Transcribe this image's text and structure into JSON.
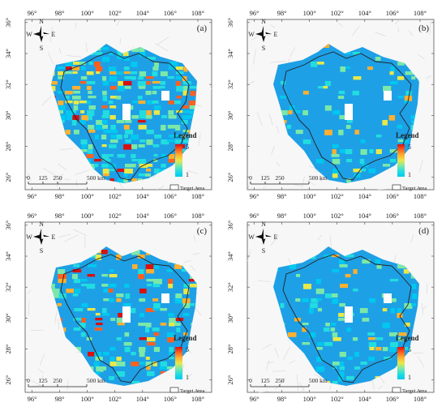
{
  "panels": [
    {
      "label": "(a)",
      "intensity": "high"
    },
    {
      "label": "(b)",
      "intensity": "low"
    },
    {
      "label": "(c)",
      "intensity": "medium"
    },
    {
      "label": "(d)",
      "intensity": "low"
    }
  ],
  "x_ticks": [
    "96°",
    "98°",
    "100°",
    "102°",
    "104°",
    "106°",
    "108°"
  ],
  "y_ticks": [
    "36°",
    "34°",
    "32°",
    "30°",
    "28°",
    "26°"
  ],
  "compass": {
    "n": "N",
    "s": "S",
    "e": "E",
    "w": "W"
  },
  "legend": {
    "title": "Legend",
    "max_label": "5",
    "min_label": "1",
    "target_label": "Target Area"
  },
  "scale_bar": {
    "labels": [
      "0",
      "125",
      "250",
      "500 km"
    ]
  },
  "colors": {
    "ramp": [
      "#00c8f0",
      "#22dde0",
      "#7be8a8",
      "#e8e84a",
      "#ffb030",
      "#ff6020",
      "#d81010"
    ],
    "base": "#1ea0e6",
    "boundary": "#222222",
    "relief": "#e9e9e9"
  }
}
